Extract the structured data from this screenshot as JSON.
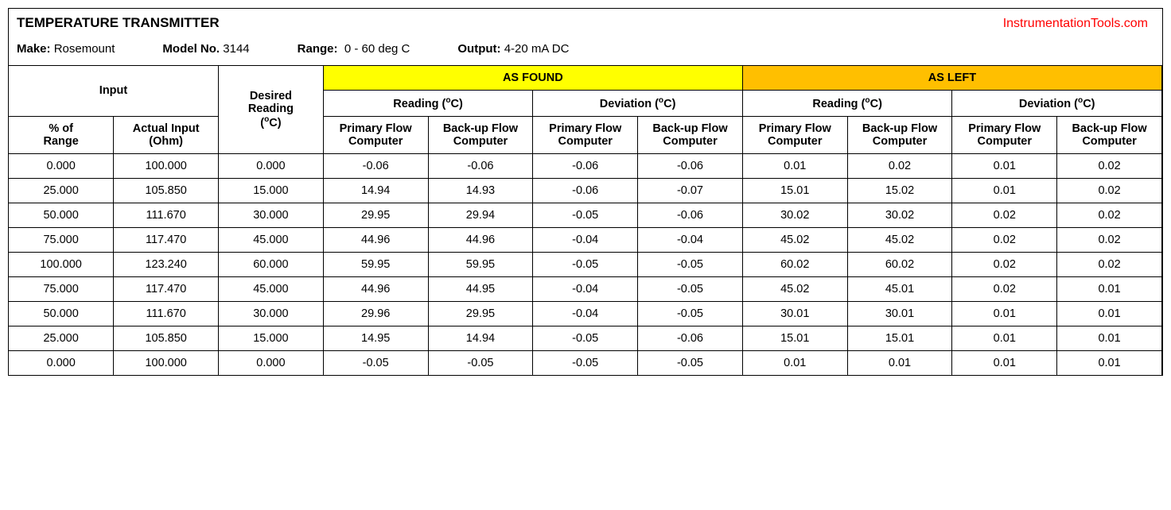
{
  "header": {
    "title": "TEMPERATURE TRANSMITTER",
    "watermark": "InstrumentationTools.com",
    "make_label": "Make:",
    "make_value": "Rosemount",
    "model_label": "Model No.",
    "model_value": "3144",
    "range_label": "Range:",
    "range_value": "0 - 60 deg C",
    "output_label": "Output:",
    "output_value": "4-20 mA DC"
  },
  "table": {
    "colors": {
      "as_found_bg": "#ffff00",
      "as_left_bg": "#ffbf00",
      "border": "#000000",
      "watermark_text": "#ff0000"
    },
    "headers": {
      "input": "Input",
      "desired_reading": "Desired Reading (°C)",
      "as_found": "AS FOUND",
      "as_left": "AS LEFT",
      "reading": "Reading (°C)",
      "deviation": "Deviation (°C)",
      "pct_range": "% of Range",
      "actual_input": "Actual Input (Ohm)",
      "primary": "Primary Flow Computer",
      "backup": "Back-up Flow Computer"
    },
    "rows": [
      {
        "pct": "0.000",
        "ohm": "100.000",
        "desired": "0.000",
        "af_r_p": "-0.06",
        "af_r_b": "-0.06",
        "af_d_p": "-0.06",
        "af_d_b": "-0.06",
        "al_r_p": "0.01",
        "al_r_b": "0.02",
        "al_d_p": "0.01",
        "al_d_b": "0.02"
      },
      {
        "pct": "25.000",
        "ohm": "105.850",
        "desired": "15.000",
        "af_r_p": "14.94",
        "af_r_b": "14.93",
        "af_d_p": "-0.06",
        "af_d_b": "-0.07",
        "al_r_p": "15.01",
        "al_r_b": "15.02",
        "al_d_p": "0.01",
        "al_d_b": "0.02"
      },
      {
        "pct": "50.000",
        "ohm": "111.670",
        "desired": "30.000",
        "af_r_p": "29.95",
        "af_r_b": "29.94",
        "af_d_p": "-0.05",
        "af_d_b": "-0.06",
        "al_r_p": "30.02",
        "al_r_b": "30.02",
        "al_d_p": "0.02",
        "al_d_b": "0.02"
      },
      {
        "pct": "75.000",
        "ohm": "117.470",
        "desired": "45.000",
        "af_r_p": "44.96",
        "af_r_b": "44.96",
        "af_d_p": "-0.04",
        "af_d_b": "-0.04",
        "al_r_p": "45.02",
        "al_r_b": "45.02",
        "al_d_p": "0.02",
        "al_d_b": "0.02"
      },
      {
        "pct": "100.000",
        "ohm": "123.240",
        "desired": "60.000",
        "af_r_p": "59.95",
        "af_r_b": "59.95",
        "af_d_p": "-0.05",
        "af_d_b": "-0.05",
        "al_r_p": "60.02",
        "al_r_b": "60.02",
        "al_d_p": "0.02",
        "al_d_b": "0.02"
      },
      {
        "pct": "75.000",
        "ohm": "117.470",
        "desired": "45.000",
        "af_r_p": "44.96",
        "af_r_b": "44.95",
        "af_d_p": "-0.04",
        "af_d_b": "-0.05",
        "al_r_p": "45.02",
        "al_r_b": "45.01",
        "al_d_p": "0.02",
        "al_d_b": "0.01"
      },
      {
        "pct": "50.000",
        "ohm": "111.670",
        "desired": "30.000",
        "af_r_p": "29.96",
        "af_r_b": "29.95",
        "af_d_p": "-0.04",
        "af_d_b": "-0.05",
        "al_r_p": "30.01",
        "al_r_b": "30.01",
        "al_d_p": "0.01",
        "al_d_b": "0.01"
      },
      {
        "pct": "25.000",
        "ohm": "105.850",
        "desired": "15.000",
        "af_r_p": "14.95",
        "af_r_b": "14.94",
        "af_d_p": "-0.05",
        "af_d_b": "-0.06",
        "al_r_p": "15.01",
        "al_r_b": "15.01",
        "al_d_p": "0.01",
        "al_d_b": "0.01"
      },
      {
        "pct": "0.000",
        "ohm": "100.000",
        "desired": "0.000",
        "af_r_p": "-0.05",
        "af_r_b": "-0.05",
        "af_d_p": "-0.05",
        "af_d_b": "-0.05",
        "al_r_p": "0.01",
        "al_r_b": "0.01",
        "al_d_p": "0.01",
        "al_d_b": "0.01"
      }
    ]
  }
}
